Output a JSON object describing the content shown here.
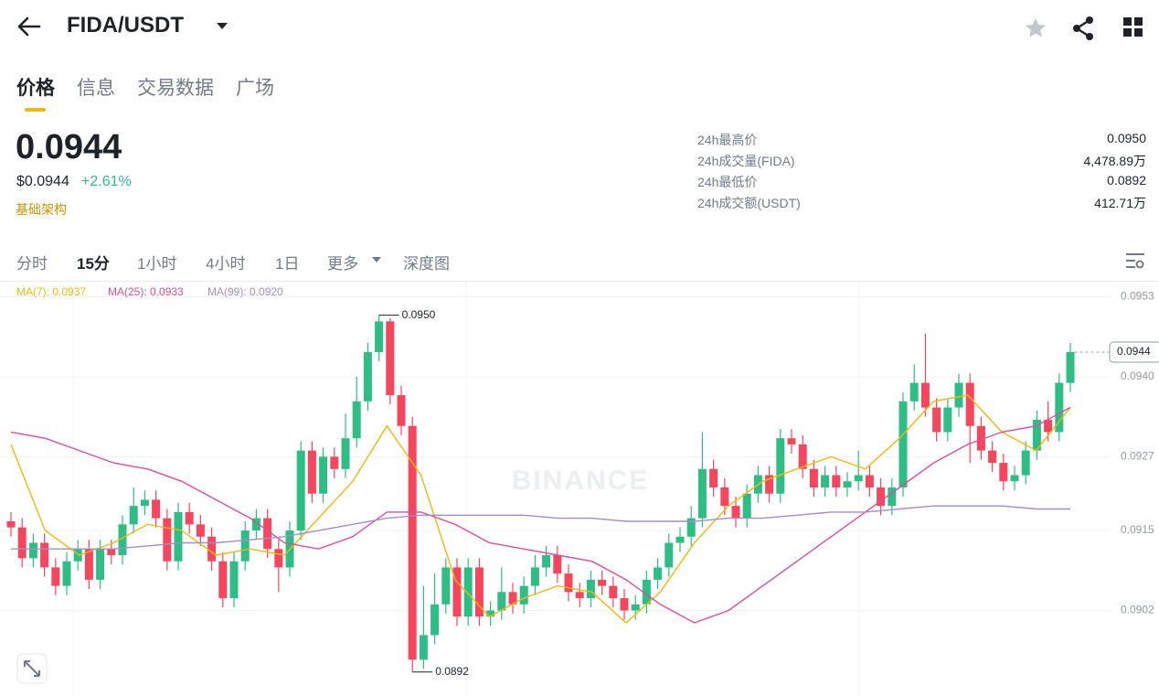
{
  "header": {
    "pair": "FIDA/USDT"
  },
  "tabs": [
    "价格",
    "信息",
    "交易数据",
    "广场"
  ],
  "price": {
    "last": "0.0944",
    "usd": "$0.0944",
    "change": "+2.61%",
    "tag": "基础架构"
  },
  "stats": [
    [
      "24h最高价",
      "0.0950"
    ],
    [
      "24h成交量(FIDA)",
      "4,478.89万"
    ],
    [
      "24h最低价",
      "0.0892"
    ],
    [
      "24h成交额(USDT)",
      "412.71万"
    ]
  ],
  "intervals": [
    "分时",
    "15分",
    "1小时",
    "4小时",
    "1日",
    "更多",
    "深度图"
  ],
  "chart_data": {
    "type": "candlestick",
    "watermark": "BINANCE",
    "up_color": "#2ebd85",
    "down_color": "#f6465d",
    "grid": true,
    "ylim": [
      0.08881,
      0.09553
    ],
    "yticks": [
      0.0953,
      {
        "value": 0.094,
        "label": "0.0940"
      },
      0.0927,
      0.0915,
      0.0902
    ],
    "candles": [
      [
        0.09165,
        0.0918,
        0.0914,
        0.09155
      ],
      [
        0.09155,
        0.0917,
        0.0909,
        0.09105
      ],
      [
        0.09105,
        0.09145,
        0.0909,
        0.0913
      ],
      [
        0.0913,
        0.09145,
        0.09075,
        0.0909
      ],
      [
        0.0909,
        0.09105,
        0.09045,
        0.0906
      ],
      [
        0.0906,
        0.09115,
        0.09045,
        0.091
      ],
      [
        0.091,
        0.09135,
        0.09085,
        0.0912
      ],
      [
        0.0912,
        0.09135,
        0.09055,
        0.0907
      ],
      [
        0.0907,
        0.09135,
        0.09055,
        0.0912
      ],
      [
        0.0912,
        0.09135,
        0.09095,
        0.0911
      ],
      [
        0.0911,
        0.09175,
        0.09095,
        0.0916
      ],
      [
        0.0916,
        0.0922,
        0.09145,
        0.0919
      ],
      [
        0.0919,
        0.09215,
        0.09175,
        0.092
      ],
      [
        0.092,
        0.09215,
        0.09155,
        0.0917
      ],
      [
        0.0917,
        0.09185,
        0.09085,
        0.091
      ],
      [
        0.091,
        0.09195,
        0.09085,
        0.0918
      ],
      [
        0.0918,
        0.09195,
        0.09145,
        0.0916
      ],
      [
        0.0916,
        0.09175,
        0.09125,
        0.0914
      ],
      [
        0.0914,
        0.09155,
        0.09085,
        0.091
      ],
      [
        0.091,
        0.09115,
        0.09025,
        0.0904
      ],
      [
        0.0904,
        0.09115,
        0.09025,
        0.091
      ],
      [
        0.091,
        0.09165,
        0.09085,
        0.0915
      ],
      [
        0.0915,
        0.09185,
        0.09135,
        0.0917
      ],
      [
        0.0917,
        0.09185,
        0.09105,
        0.0912
      ],
      [
        0.0912,
        0.09135,
        0.0905,
        0.0909
      ],
      [
        0.0909,
        0.09165,
        0.09075,
        0.0915
      ],
      [
        0.0915,
        0.09295,
        0.09135,
        0.0928
      ],
      [
        0.0928,
        0.09295,
        0.09195,
        0.0921
      ],
      [
        0.0921,
        0.09285,
        0.09195,
        0.0927
      ],
      [
        0.0927,
        0.09285,
        0.09235,
        0.0925
      ],
      [
        0.0925,
        0.0934,
        0.09235,
        0.093
      ],
      [
        0.093,
        0.094,
        0.09285,
        0.0936
      ],
      [
        0.0936,
        0.09455,
        0.09345,
        0.0944
      ],
      [
        0.0944,
        0.095,
        0.09425,
        0.0949
      ],
      [
        0.0949,
        0.09495,
        0.09355,
        0.0937
      ],
      [
        0.0937,
        0.09385,
        0.09305,
        0.0932
      ],
      [
        0.0932,
        0.09335,
        0.0892,
        0.0894
      ],
      [
        0.0894,
        0.0906,
        0.08925,
        0.0898
      ],
      [
        0.0898,
        0.0908,
        0.08965,
        0.0903
      ],
      [
        0.0903,
        0.09105,
        0.09015,
        0.0909
      ],
      [
        0.0909,
        0.09105,
        0.08995,
        0.0901
      ],
      [
        0.0901,
        0.09105,
        0.08995,
        0.0909
      ],
      [
        0.0909,
        0.09105,
        0.08995,
        0.0901
      ],
      [
        0.0901,
        0.09035,
        0.08995,
        0.0902
      ],
      [
        0.0902,
        0.0909,
        0.09005,
        0.0905
      ],
      [
        0.0905,
        0.09065,
        0.09015,
        0.0903
      ],
      [
        0.0903,
        0.09075,
        0.09015,
        0.0906
      ],
      [
        0.0906,
        0.0911,
        0.09045,
        0.0909
      ],
      [
        0.0909,
        0.09125,
        0.09075,
        0.0911
      ],
      [
        0.0911,
        0.09125,
        0.09065,
        0.0908
      ],
      [
        0.0908,
        0.09095,
        0.09035,
        0.0905
      ],
      [
        0.0905,
        0.09065,
        0.09025,
        0.0904
      ],
      [
        0.0904,
        0.09085,
        0.09025,
        0.0907
      ],
      [
        0.0907,
        0.09085,
        0.09045,
        0.0906
      ],
      [
        0.0906,
        0.09075,
        0.09025,
        0.0904
      ],
      [
        0.0904,
        0.09055,
        0.09005,
        0.0902
      ],
      [
        0.0902,
        0.09045,
        0.09005,
        0.0903
      ],
      [
        0.0903,
        0.09085,
        0.09015,
        0.0907
      ],
      [
        0.0907,
        0.09105,
        0.09055,
        0.0909
      ],
      [
        0.0909,
        0.09145,
        0.09075,
        0.0913
      ],
      [
        0.0913,
        0.09155,
        0.09115,
        0.0914
      ],
      [
        0.0914,
        0.0919,
        0.09125,
        0.0917
      ],
      [
        0.0917,
        0.0931,
        0.09155,
        0.0925
      ],
      [
        0.0925,
        0.09265,
        0.09205,
        0.0922
      ],
      [
        0.0922,
        0.09235,
        0.09175,
        0.0919
      ],
      [
        0.0919,
        0.09205,
        0.09155,
        0.0917
      ],
      [
        0.0917,
        0.09225,
        0.09155,
        0.0921
      ],
      [
        0.0921,
        0.09255,
        0.09195,
        0.0924
      ],
      [
        0.0924,
        0.09255,
        0.09195,
        0.0921
      ],
      [
        0.0921,
        0.09315,
        0.09195,
        0.093
      ],
      [
        0.093,
        0.09315,
        0.09275,
        0.0929
      ],
      [
        0.0929,
        0.09305,
        0.09235,
        0.0925
      ],
      [
        0.0925,
        0.09265,
        0.09205,
        0.0922
      ],
      [
        0.0922,
        0.09255,
        0.09205,
        0.0924
      ],
      [
        0.0924,
        0.09255,
        0.09205,
        0.0922
      ],
      [
        0.0922,
        0.09245,
        0.09205,
        0.0923
      ],
      [
        0.0923,
        0.0928,
        0.09215,
        0.0924
      ],
      [
        0.0924,
        0.09255,
        0.09205,
        0.0922
      ],
      [
        0.0922,
        0.09235,
        0.09175,
        0.0919
      ],
      [
        0.0919,
        0.09235,
        0.09175,
        0.0922
      ],
      [
        0.0922,
        0.09375,
        0.09205,
        0.0936
      ],
      [
        0.0936,
        0.0942,
        0.09345,
        0.0939
      ],
      [
        0.0939,
        0.0947,
        0.09335,
        0.0935
      ],
      [
        0.0935,
        0.09365,
        0.09295,
        0.0931
      ],
      [
        0.0931,
        0.09365,
        0.09295,
        0.0935
      ],
      [
        0.0935,
        0.09405,
        0.09335,
        0.0939
      ],
      [
        0.0939,
        0.09405,
        0.0926,
        0.0932
      ],
      [
        0.0932,
        0.09335,
        0.09265,
        0.0928
      ],
      [
        0.0928,
        0.09295,
        0.09245,
        0.0926
      ],
      [
        0.0926,
        0.09275,
        0.09215,
        0.0923
      ],
      [
        0.0923,
        0.09255,
        0.09215,
        0.0924
      ],
      [
        0.0924,
        0.09295,
        0.09225,
        0.0928
      ],
      [
        0.0928,
        0.09345,
        0.09265,
        0.0933
      ],
      [
        0.0933,
        0.0936,
        0.09295,
        0.0931
      ],
      [
        0.0931,
        0.09405,
        0.09295,
        0.0939
      ],
      [
        0.0939,
        0.09455,
        0.09375,
        0.0944
      ]
    ],
    "series": [
      {
        "name": "MA(7): 0.0937",
        "color": "#f0b90b",
        "values": [
          0.0929,
          0.0915,
          0.0911,
          0.0913,
          0.0916,
          0.0915,
          0.0911,
          0.0912,
          0.0911,
          0.0917,
          0.0923,
          0.0932,
          0.0924,
          0.0907,
          0.0901,
          0.0904,
          0.0906,
          0.0905,
          0.09,
          0.0905,
          0.0913,
          0.0919,
          0.0923,
          0.0925,
          0.0927,
          0.0925,
          0.093,
          0.0936,
          0.0937,
          0.0931,
          0.0928,
          0.0935
        ]
      },
      {
        "name": "MA(25): 0.0933",
        "color": "#d84f9e",
        "values": [
          0.0931,
          0.093,
          0.0928,
          0.0926,
          0.0925,
          0.0923,
          0.092,
          0.0917,
          0.0913,
          0.0912,
          0.0914,
          0.0918,
          0.0918,
          0.0916,
          0.0913,
          0.0912,
          0.0911,
          0.091,
          0.0907,
          0.0903,
          0.09,
          0.0902,
          0.0906,
          0.091,
          0.0914,
          0.0918,
          0.0922,
          0.0926,
          0.0929,
          0.0931,
          0.0932,
          0.0935
        ]
      },
      {
        "name": "MA(99): 0.0920",
        "color": "#a58ccf",
        "values": [
          0.0912,
          0.0912,
          0.0912,
          0.0912,
          0.09125,
          0.0913,
          0.0913,
          0.09135,
          0.0914,
          0.0915,
          0.0916,
          0.0917,
          0.09175,
          0.09175,
          0.09175,
          0.09175,
          0.0917,
          0.0917,
          0.09165,
          0.09165,
          0.09165,
          0.0917,
          0.0917,
          0.09175,
          0.0918,
          0.0918,
          0.09185,
          0.0919,
          0.0919,
          0.0919,
          0.09185,
          0.09185
        ]
      }
    ],
    "annotations": [
      {
        "value": 0.095,
        "label": "0.0950"
      },
      {
        "value": 0.0892,
        "label": "0.0892"
      }
    ],
    "last_price": {
      "value": 0.0944,
      "label": "0.0944"
    }
  }
}
